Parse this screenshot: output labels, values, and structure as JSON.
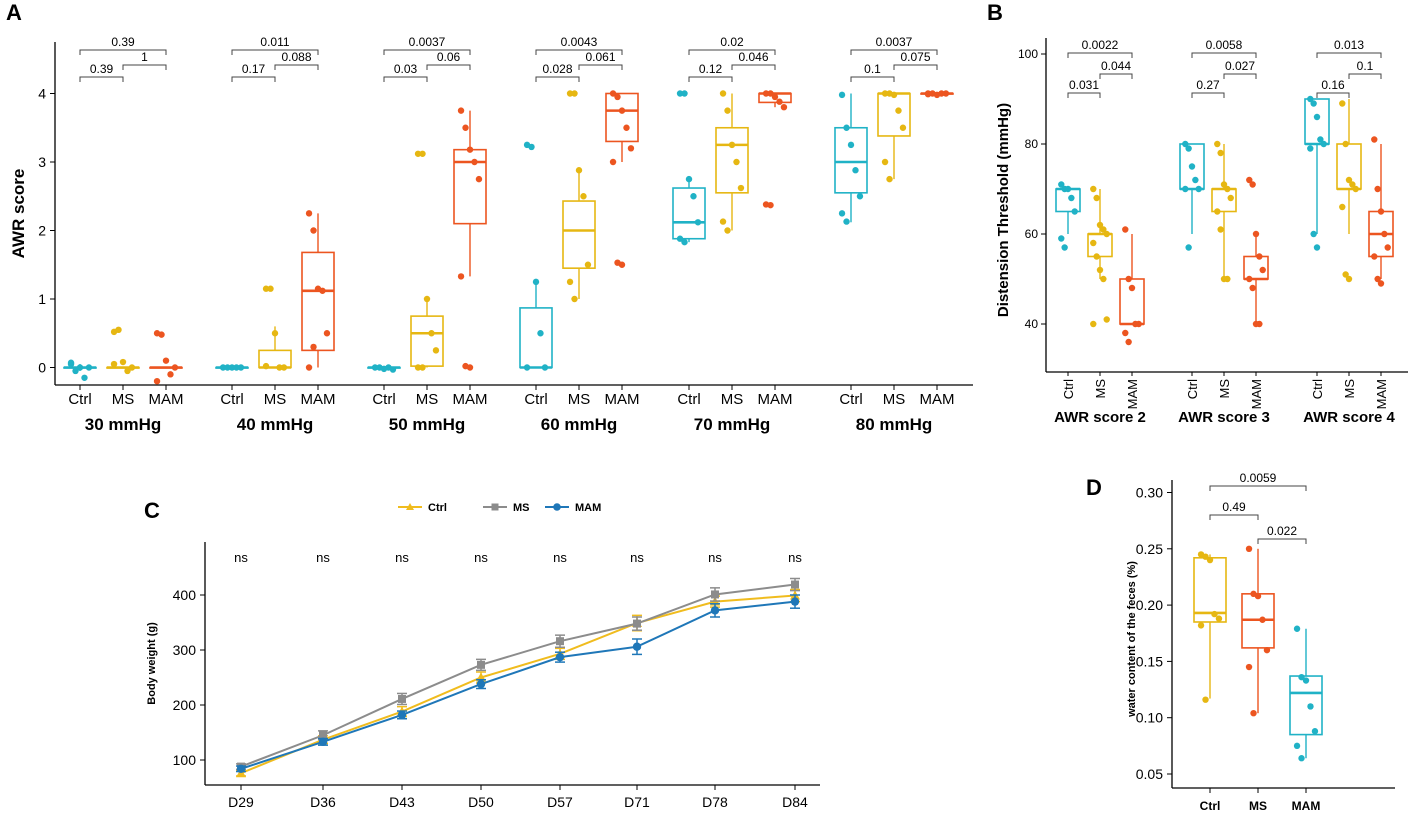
{
  "colors": {
    "ctrl": "#20b2c6",
    "ms": "#e6b712",
    "mam": "#ec5520",
    "c_ctrl": "#f0bc1e",
    "c_ms": "#8c8c8c",
    "c_mam": "#1f77b8"
  },
  "chart_data": [
    {
      "panel": "A",
      "type": "box",
      "ylabel": "AWR score",
      "ylim": [
        -0.3,
        4.75
      ],
      "yticks": [
        "0",
        "1",
        "2",
        "3",
        "4"
      ],
      "categories": [
        "Ctrl",
        "MS",
        "MAM"
      ],
      "groups": [
        {
          "label": "30 mmHg",
          "boxes": [
            {
              "cat": "Ctrl",
              "min": -0.05,
              "q1": 0,
              "med": 0,
              "q3": 0,
              "max": 0.05,
              "pts": [
                0.05,
                -0.05,
                0,
                -0.15,
                0,
                0.07
              ]
            },
            {
              "cat": "MS",
              "min": 0,
              "q1": 0,
              "med": 0,
              "q3": 0,
              "max": 0,
              "pts": [
                0.52,
                0.55,
                0.08,
                -0.05,
                0,
                0.05
              ]
            },
            {
              "cat": "MAM",
              "min": 0,
              "q1": 0,
              "med": 0,
              "q3": 0,
              "max": 0,
              "pts": [
                0.5,
                0.48,
                0.1,
                -0.1,
                0,
                -0.2
              ]
            }
          ],
          "sig": [
            "0.39",
            "1",
            "0.39"
          ]
        },
        {
          "label": "40 mmHg",
          "boxes": [
            {
              "cat": "Ctrl",
              "min": 0,
              "q1": 0,
              "med": 0,
              "q3": 0,
              "max": 0,
              "pts": [
                0,
                0,
                0,
                0,
                0
              ]
            },
            {
              "cat": "MS",
              "min": 0,
              "q1": 0,
              "med": 0,
              "q3": 0.25,
              "max": 0.6,
              "pts": [
                1.15,
                1.15,
                0.5,
                0,
                0,
                0.02
              ]
            },
            {
              "cat": "MAM",
              "min": 0,
              "q1": 0.25,
              "med": 1.12,
              "q3": 1.68,
              "max": 2.25,
              "pts": [
                2.25,
                2.0,
                1.15,
                1.12,
                0.5,
                0,
                0.3
              ]
            }
          ],
          "sig": [
            "0.17",
            "0.088",
            "0.011"
          ]
        },
        {
          "label": "50 mmHg",
          "boxes": [
            {
              "cat": "Ctrl",
              "min": 0,
              "q1": 0,
              "med": 0,
              "q3": 0,
              "max": 0,
              "pts": [
                0,
                0,
                -0.02,
                0,
                -0.03
              ]
            },
            {
              "cat": "MS",
              "min": 0,
              "q1": 0.02,
              "med": 0.5,
              "q3": 0.75,
              "max": 1.02,
              "pts": [
                3.12,
                3.12,
                1.0,
                0.5,
                0.25,
                0,
                0
              ]
            },
            {
              "cat": "MAM",
              "min": 1.33,
              "q1": 2.1,
              "med": 3.0,
              "q3": 3.18,
              "max": 3.75,
              "pts": [
                3.75,
                3.5,
                3.18,
                3.0,
                2.75,
                1.33,
                0.02,
                0
              ]
            }
          ],
          "sig": [
            "0.03",
            "0.06",
            "0.0037"
          ]
        },
        {
          "label": "60 mmHg",
          "boxes": [
            {
              "cat": "Ctrl",
              "min": 0,
              "q1": 0,
              "med": 0,
              "q3": 0.87,
              "max": 1.25,
              "pts": [
                3.25,
                3.22,
                1.25,
                0.5,
                0,
                0
              ]
            },
            {
              "cat": "MS",
              "min": 1.0,
              "q1": 1.45,
              "med": 2.0,
              "q3": 2.43,
              "max": 2.88,
              "pts": [
                4.0,
                4.0,
                2.88,
                2.5,
                1.5,
                1.25,
                1.0
              ]
            },
            {
              "cat": "MAM",
              "min": 3.0,
              "q1": 3.3,
              "med": 3.75,
              "q3": 4.0,
              "max": 4.0,
              "pts": [
                4.0,
                3.95,
                3.75,
                3.5,
                3.2,
                3.0,
                1.53,
                1.5
              ]
            }
          ],
          "sig": [
            "0.028",
            "0.061",
            "0.0043"
          ]
        },
        {
          "label": "70 mmHg",
          "boxes": [
            {
              "cat": "Ctrl",
              "min": 1.83,
              "q1": 1.88,
              "med": 2.12,
              "q3": 2.62,
              "max": 2.75,
              "pts": [
                4.0,
                4.0,
                2.75,
                2.5,
                2.12,
                1.88,
                1.83
              ]
            },
            {
              "cat": "MS",
              "min": 2.0,
              "q1": 2.55,
              "med": 3.25,
              "q3": 3.5,
              "max": 4.0,
              "pts": [
                4.0,
                3.75,
                3.25,
                3.0,
                2.62,
                2.13,
                2.0
              ]
            },
            {
              "cat": "MAM",
              "min": 3.8,
              "q1": 3.87,
              "med": 4.0,
              "q3": 4.0,
              "max": 4.0,
              "pts": [
                4.0,
                4.0,
                3.95,
                3.88,
                3.8,
                2.38,
                2.37
              ]
            }
          ],
          "sig": [
            "0.12",
            "0.046",
            "0.02"
          ]
        },
        {
          "label": "80 mmHg",
          "boxes": [
            {
              "cat": "Ctrl",
              "min": 2.12,
              "q1": 2.55,
              "med": 3.0,
              "q3": 3.5,
              "max": 4.0,
              "pts": [
                3.98,
                3.5,
                3.25,
                2.88,
                2.5,
                2.25,
                2.13
              ]
            },
            {
              "cat": "MS",
              "min": 2.75,
              "q1": 3.38,
              "med": 4.0,
              "q3": 4.0,
              "max": 4.0,
              "pts": [
                4.0,
                4.0,
                3.98,
                3.75,
                3.5,
                3.0,
                2.75
              ]
            },
            {
              "cat": "MAM",
              "min": 4.0,
              "q1": 4.0,
              "med": 4.0,
              "q3": 4.0,
              "max": 4.0,
              "pts": [
                4.0,
                4.0,
                3.98,
                4.0,
                4.0,
                3.99
              ]
            }
          ],
          "sig": [
            "0.1",
            "0.075",
            "0.0037"
          ]
        }
      ]
    },
    {
      "panel": "B",
      "type": "box",
      "ylabel": "Distension Threshold (mmHg)",
      "ylim": [
        25,
        103
      ],
      "yticks": [
        "40",
        "60",
        "80",
        "100"
      ],
      "categories": [
        "Ctrl",
        "MS",
        "MAM"
      ],
      "groups": [
        {
          "label": "AWR score 2",
          "boxes": [
            {
              "cat": "Ctrl",
              "min": 60,
              "q1": 65,
              "med": 70,
              "q3": 70,
              "max": 70,
              "pts": [
                71,
                70,
                70,
                68,
                65,
                59,
                57
              ]
            },
            {
              "cat": "MS",
              "min": 50,
              "q1": 55,
              "med": 60,
              "q3": 60,
              "max": 70,
              "pts": [
                70,
                68,
                62,
                61,
                60,
                58,
                55,
                52,
                50,
                41,
                40
              ]
            },
            {
              "cat": "MAM",
              "min": 40,
              "q1": 40,
              "med": 40,
              "q3": 50,
              "max": 60,
              "pts": [
                61,
                50,
                48,
                40,
                40,
                38,
                36
              ]
            }
          ],
          "sig": [
            "0.031",
            "0.044",
            "0.0022"
          ]
        },
        {
          "label": "AWR score 3",
          "boxes": [
            {
              "cat": "Ctrl",
              "min": 60,
              "q1": 70,
              "med": 70,
              "q3": 80,
              "max": 80,
              "pts": [
                80,
                79,
                75,
                72,
                70,
                70,
                57
              ]
            },
            {
              "cat": "MS",
              "min": 50,
              "q1": 65,
              "med": 70,
              "q3": 70,
              "max": 80,
              "pts": [
                80,
                78,
                71,
                70,
                68,
                65,
                61,
                50,
                50
              ]
            },
            {
              "cat": "MAM",
              "min": 40,
              "q1": 50,
              "med": 50,
              "q3": 55,
              "max": 60,
              "pts": [
                72,
                71,
                60,
                55,
                52,
                50,
                48,
                40,
                40
              ]
            }
          ],
          "sig": [
            "0.27",
            "0.027",
            "0.0058"
          ]
        },
        {
          "label": "AWR score 4",
          "boxes": [
            {
              "cat": "Ctrl",
              "min": 60,
              "q1": 80,
              "med": 80,
              "q3": 90,
              "max": 90,
              "pts": [
                90,
                89,
                86,
                81,
                80,
                79,
                60,
                57
              ]
            },
            {
              "cat": "MS",
              "min": 60,
              "q1": 70,
              "med": 70,
              "q3": 80,
              "max": 90,
              "pts": [
                89,
                80,
                72,
                71,
                70,
                66,
                51,
                50
              ]
            },
            {
              "cat": "MAM",
              "min": 50,
              "q1": 55,
              "med": 60,
              "q3": 65,
              "max": 80,
              "pts": [
                81,
                70,
                65,
                60,
                57,
                55,
                50,
                49
              ]
            }
          ],
          "sig": [
            "0.16",
            "0.1",
            "0.013"
          ]
        }
      ]
    },
    {
      "panel": "C",
      "type": "line",
      "ylabel": "Body weight (g)",
      "ylim": [
        70,
        470
      ],
      "yticks": [
        "100",
        "200",
        "300",
        "400"
      ],
      "categories": [
        "D29",
        "D36",
        "D43",
        "D50",
        "D57",
        "D71",
        "D78",
        "D84"
      ],
      "sig": [
        "ns",
        "ns",
        "ns",
        "ns",
        "ns",
        "ns",
        "ns",
        "ns"
      ],
      "series": [
        {
          "name": "Ctrl",
          "values": [
            76,
            137,
            188,
            250,
            293,
            349,
            388,
            399
          ],
          "err": [
            5,
            7,
            9,
            10,
            10,
            14,
            10,
            11
          ]
        },
        {
          "name": "MS",
          "values": [
            88,
            145,
            211,
            273,
            316,
            348,
            401,
            419
          ],
          "err": [
            5,
            8,
            10,
            10,
            11,
            12,
            12,
            11
          ]
        },
        {
          "name": "MAM",
          "values": [
            84,
            133,
            182,
            238,
            287,
            306,
            372,
            388
          ],
          "err": [
            5,
            6,
            7,
            8,
            9,
            14,
            12,
            12
          ]
        }
      ]
    },
    {
      "panel": "D",
      "type": "box",
      "ylabel": "water content of the feces (%)",
      "ylim": [
        0.045,
        0.305
      ],
      "yticks": [
        "0.05",
        "0.10",
        "0.15",
        "0.20",
        "0.25",
        "0.30"
      ],
      "categories": [
        "Ctrl",
        "MS",
        "MAM"
      ],
      "boxes": [
        {
          "cat": "Ctrl",
          "min": 0.117,
          "q1": 0.185,
          "med": 0.193,
          "q3": 0.242,
          "max": 0.245,
          "pts": [
            0.245,
            0.243,
            0.24,
            0.192,
            0.188,
            0.182,
            0.116
          ]
        },
        {
          "cat": "MS",
          "min": 0.104,
          "q1": 0.162,
          "med": 0.187,
          "q3": 0.21,
          "max": 0.25,
          "pts": [
            0.25,
            0.21,
            0.208,
            0.187,
            0.16,
            0.145,
            0.104
          ]
        },
        {
          "cat": "MAM",
          "min": 0.064,
          "q1": 0.085,
          "med": 0.122,
          "q3": 0.137,
          "max": 0.179,
          "pts": [
            0.179,
            0.136,
            0.133,
            0.11,
            0.088,
            0.075,
            0.064
          ]
        }
      ],
      "sig": [
        "0.49",
        "0.022",
        "0.0059"
      ]
    }
  ]
}
